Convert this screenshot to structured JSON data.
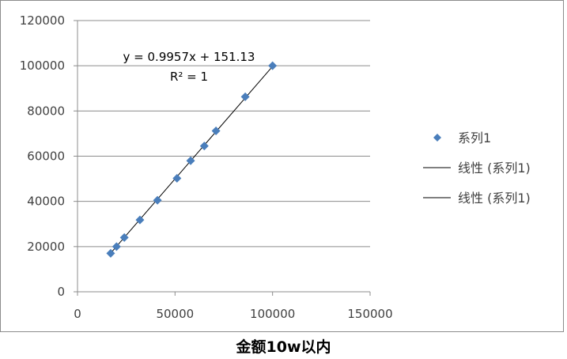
{
  "chart_data": {
    "type": "scatter",
    "xlabel": "金额10w以内",
    "ylabel": "",
    "title": "",
    "xlim": [
      0,
      150000
    ],
    "ylim": [
      0,
      120000
    ],
    "x_ticks": [
      0,
      50000,
      100000,
      150000
    ],
    "y_ticks": [
      0,
      20000,
      40000,
      60000,
      80000,
      100000,
      120000
    ],
    "x_tick_labels": [
      "0",
      "50000",
      "100000",
      "150000"
    ],
    "y_tick_labels": [
      "0",
      "20000",
      "40000",
      "60000",
      "80000",
      "100000",
      "120000"
    ],
    "grid": {
      "horizontal": true,
      "vertical": false
    },
    "series": [
      {
        "name": "系列1",
        "color": "#4a7ebb",
        "marker": "diamond",
        "points": [
          [
            17000,
            17000
          ],
          [
            20000,
            20000
          ],
          [
            24000,
            24000
          ],
          [
            32000,
            31800
          ],
          [
            41000,
            40500
          ],
          [
            51000,
            50200
          ],
          [
            58000,
            58000
          ],
          [
            65000,
            64500
          ],
          [
            71000,
            71200
          ],
          [
            86000,
            86300
          ],
          [
            100000,
            100000
          ]
        ]
      }
    ],
    "trendline": {
      "type": "linear",
      "slope": 0.9957,
      "intercept": 151.13,
      "x_range": [
        17000,
        100000
      ],
      "color": "#000000",
      "equation_label": "y = 0.9957x + 151.13",
      "r2_label": "R² = 1"
    },
    "legend": {
      "position": "right",
      "entries": [
        {
          "label": "系列1",
          "kind": "marker"
        },
        {
          "label": "线性 (系列1)",
          "kind": "line"
        },
        {
          "label": "线性 (系列1)",
          "kind": "line"
        }
      ]
    }
  }
}
